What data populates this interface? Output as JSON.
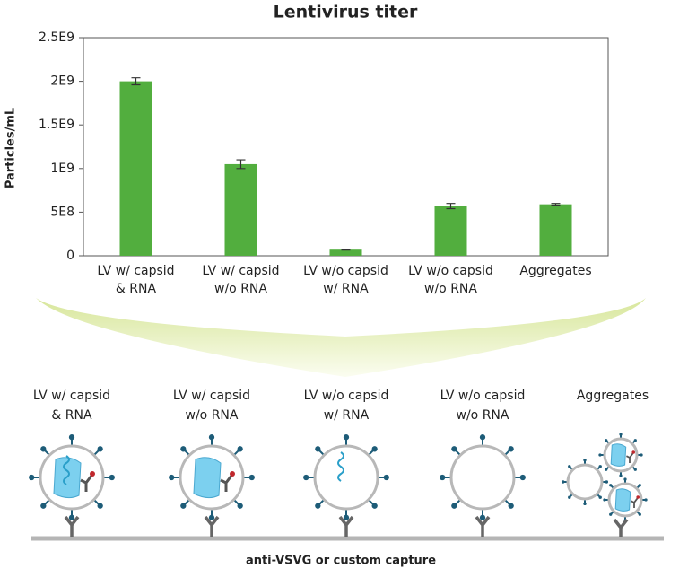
{
  "chart_data": {
    "type": "bar",
    "title": "Lentivirus titer",
    "y_label": "Particles/mL",
    "categories": [
      [
        "LV w/ capsid",
        "& RNA"
      ],
      [
        "LV w/ capsid",
        "w/o RNA"
      ],
      [
        "LV w/o capsid",
        "w/ RNA"
      ],
      [
        "LV w/o capsid",
        "w/o RNA"
      ],
      [
        "Aggregates"
      ]
    ],
    "values": [
      2000000000,
      1050000000,
      70000000,
      570000000,
      590000000
    ],
    "errors": [
      40000000,
      50000000,
      5000000,
      30000000,
      10000000
    ],
    "color": "#52ae3e",
    "ylim": [
      0,
      2500000000
    ],
    "yticks": [
      0,
      {
        "value": 500000000,
        "label": "5E8"
      },
      {
        "value": 1000000000,
        "label": "1E9"
      },
      {
        "value": 1500000000,
        "label": "1.5E9"
      },
      {
        "value": 2000000000,
        "label": "2E9"
      },
      {
        "value": 2500000000,
        "label": "2.5E9"
      }
    ]
  },
  "diagram": {
    "caption": "anti-VSVG or custom capture"
  }
}
